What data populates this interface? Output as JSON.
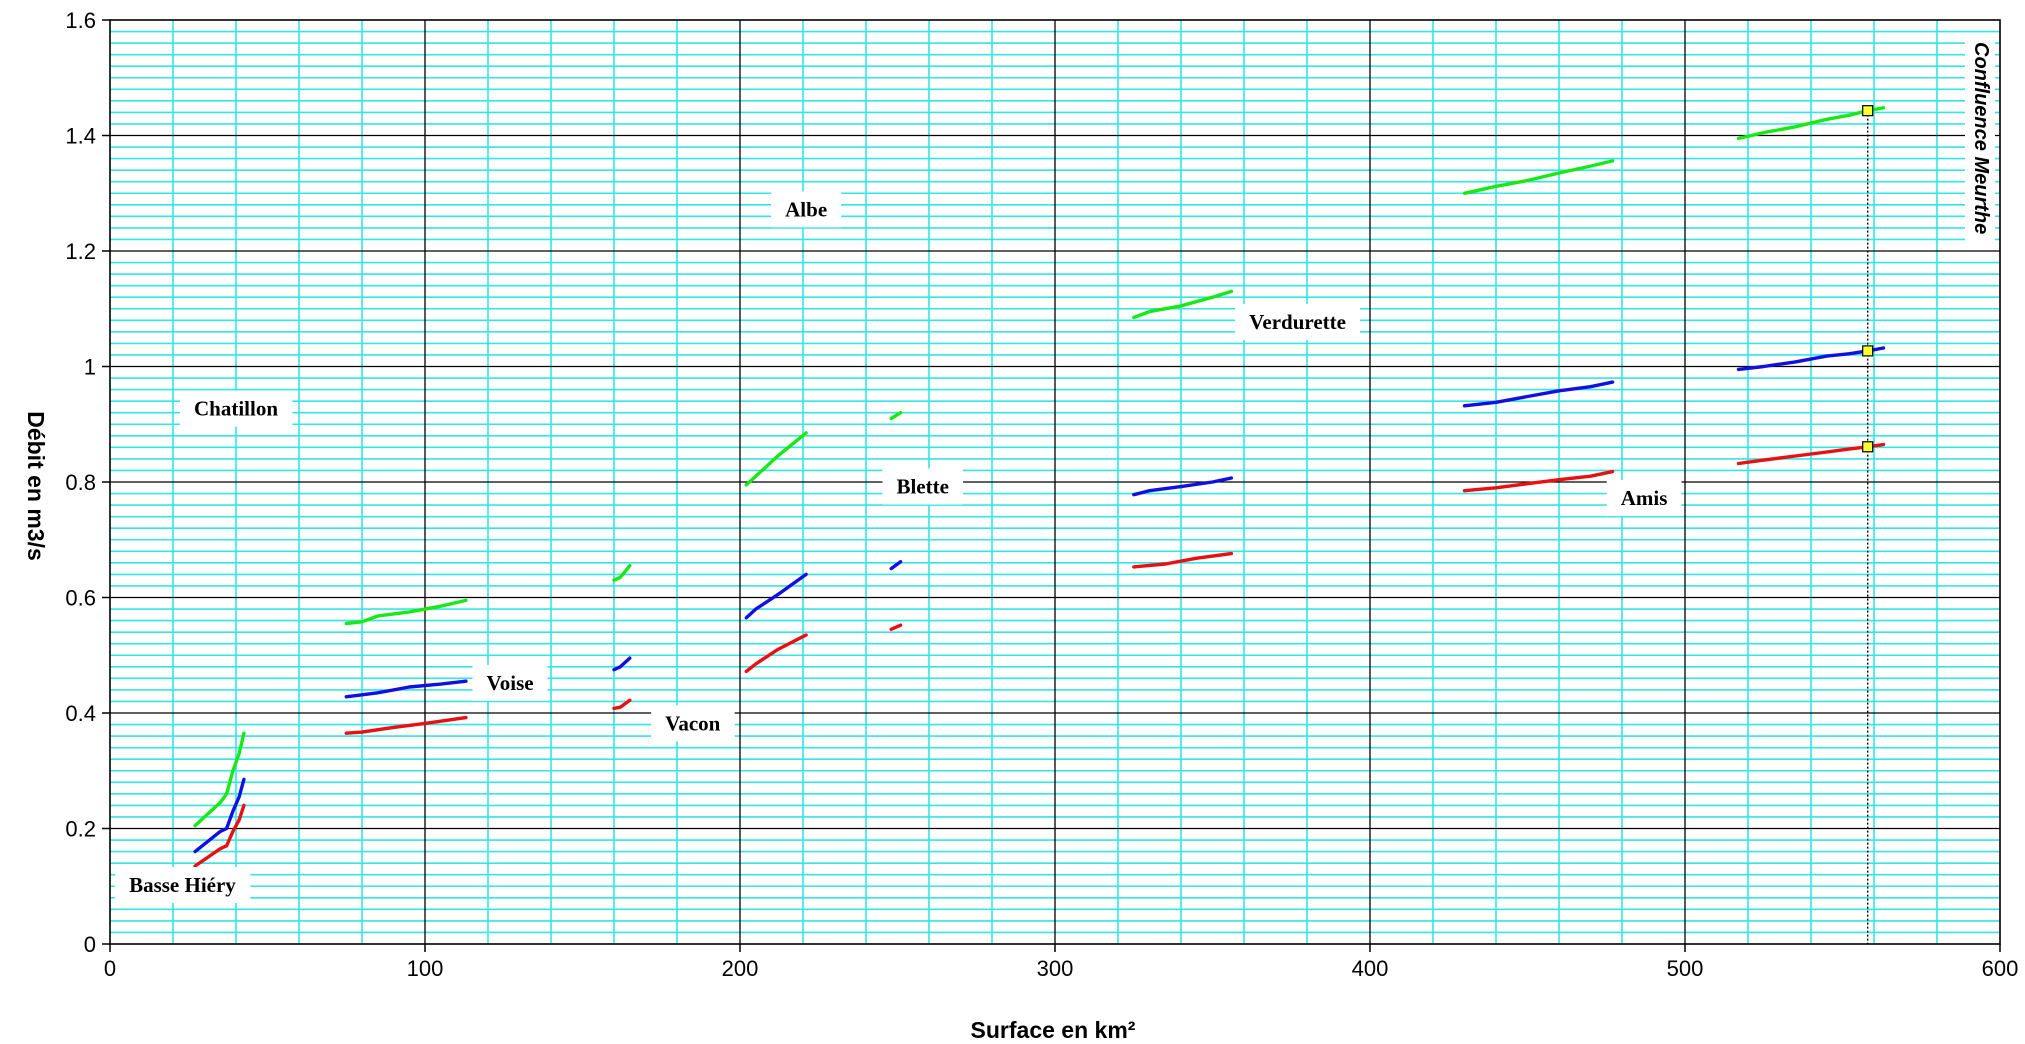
{
  "chart_data": {
    "type": "line",
    "title": "",
    "xlabel": "Surface en km²",
    "ylabel": "Débit en m3/s",
    "xlim": [
      0,
      600
    ],
    "ylim": [
      0,
      1.6
    ],
    "x_ticks": [
      "0",
      "100",
      "200",
      "300",
      "400",
      "500",
      "600"
    ],
    "y_ticks": [
      "0",
      "0.2",
      "0.4",
      "0.6",
      "0.8",
      "1",
      "1.2",
      "1.4",
      "1.6"
    ],
    "grid": {
      "major": true,
      "minor": true,
      "minor_color": "#33e5e5",
      "major_color": "#000000"
    },
    "series_colors": {
      "green": "#18e818",
      "blue": "#1010e0",
      "red": "#e81010"
    },
    "segments": [
      {
        "label": "Basse Hiéry",
        "label_pos": [
          23,
          0.09
        ],
        "green": [
          [
            27,
            0.205
          ],
          [
            35,
            0.245
          ],
          [
            37,
            0.26
          ],
          [
            39,
            0.3
          ],
          [
            41,
            0.33
          ],
          [
            42.5,
            0.365
          ]
        ],
        "blue": [
          [
            27,
            0.16
          ],
          [
            35,
            0.195
          ],
          [
            37,
            0.2
          ],
          [
            39,
            0.23
          ],
          [
            41,
            0.255
          ],
          [
            42.5,
            0.285
          ]
        ],
        "red": [
          [
            27,
            0.135
          ],
          [
            35,
            0.165
          ],
          [
            37,
            0.17
          ],
          [
            39,
            0.195
          ],
          [
            41,
            0.215
          ],
          [
            42.5,
            0.24
          ]
        ]
      },
      {
        "label": "Chatillon",
        "label_pos": [
          40,
          0.915
        ],
        "green": [
          [
            75,
            0.555
          ],
          [
            80,
            0.558
          ],
          [
            85,
            0.568
          ],
          [
            95,
            0.575
          ],
          [
            105,
            0.585
          ],
          [
            113,
            0.595
          ]
        ],
        "blue": [
          [
            75,
            0.428
          ],
          [
            85,
            0.435
          ],
          [
            95,
            0.445
          ],
          [
            105,
            0.45
          ],
          [
            113,
            0.455
          ]
        ],
        "red": [
          [
            75,
            0.365
          ],
          [
            80,
            0.367
          ],
          [
            90,
            0.375
          ],
          [
            100,
            0.382
          ],
          [
            113,
            0.392
          ]
        ]
      },
      {
        "label": "Voise",
        "label_pos": [
          127,
          0.44
        ],
        "green": [
          [
            160,
            0.63
          ],
          [
            162,
            0.635
          ],
          [
            165,
            0.655
          ]
        ],
        "blue": [
          [
            160,
            0.475
          ],
          [
            162,
            0.48
          ],
          [
            165,
            0.495
          ]
        ],
        "red": [
          [
            160,
            0.408
          ],
          [
            162,
            0.41
          ],
          [
            165,
            0.422
          ]
        ]
      },
      {
        "label": "Vacon",
        "label_pos": [
          185,
          0.37
        ],
        "green": [
          [
            202,
            0.795
          ],
          [
            205,
            0.81
          ],
          [
            212,
            0.845
          ],
          [
            221,
            0.885
          ]
        ],
        "blue": [
          [
            202,
            0.565
          ],
          [
            205,
            0.58
          ],
          [
            212,
            0.605
          ],
          [
            221,
            0.64
          ]
        ],
        "red": [
          [
            202,
            0.472
          ],
          [
            205,
            0.485
          ],
          [
            212,
            0.51
          ],
          [
            221,
            0.535
          ]
        ]
      },
      {
        "label": "Albe",
        "label_pos": [
          221,
          1.26
        ],
        "green": [
          [
            248,
            0.91
          ],
          [
            251,
            0.92
          ]
        ],
        "blue": [
          [
            248,
            0.65
          ],
          [
            251,
            0.662
          ]
        ],
        "red": [
          [
            248,
            0.545
          ],
          [
            251,
            0.552
          ]
        ]
      },
      {
        "label": "Blette",
        "label_pos": [
          258,
          0.78
        ],
        "green": [
          [
            325,
            1.085
          ],
          [
            330,
            1.095
          ],
          [
            340,
            1.105
          ],
          [
            350,
            1.12
          ],
          [
            356,
            1.13
          ]
        ],
        "blue": [
          [
            325,
            0.778
          ],
          [
            330,
            0.785
          ],
          [
            340,
            0.792
          ],
          [
            350,
            0.8
          ],
          [
            356,
            0.807
          ]
        ],
        "red": [
          [
            325,
            0.653
          ],
          [
            335,
            0.658
          ],
          [
            345,
            0.668
          ],
          [
            356,
            0.676
          ]
        ]
      },
      {
        "label": "Verdurette",
        "label_pos": [
          377,
          1.065
        ],
        "green": [
          [
            430,
            1.3
          ],
          [
            440,
            1.312
          ],
          [
            450,
            1.322
          ],
          [
            460,
            1.335
          ],
          [
            470,
            1.347
          ],
          [
            477,
            1.356
          ]
        ],
        "blue": [
          [
            430,
            0.932
          ],
          [
            440,
            0.938
          ],
          [
            450,
            0.948
          ],
          [
            460,
            0.958
          ],
          [
            470,
            0.965
          ],
          [
            477,
            0.973
          ]
        ],
        "red": [
          [
            430,
            0.785
          ],
          [
            440,
            0.79
          ],
          [
            450,
            0.797
          ],
          [
            460,
            0.804
          ],
          [
            470,
            0.81
          ],
          [
            477,
            0.818
          ]
        ]
      },
      {
        "label": "Amis",
        "label_pos": [
          487,
          0.76
        ],
        "green": [
          [
            517,
            1.395
          ],
          [
            525,
            1.405
          ],
          [
            535,
            1.415
          ],
          [
            545,
            1.428
          ],
          [
            552,
            1.435
          ],
          [
            558,
            1.443
          ],
          [
            563,
            1.448
          ]
        ],
        "blue": [
          [
            517,
            0.995
          ],
          [
            525,
            1.0
          ],
          [
            535,
            1.008
          ],
          [
            545,
            1.018
          ],
          [
            552,
            1.022
          ],
          [
            558,
            1.027
          ],
          [
            563,
            1.032
          ]
        ],
        "red": [
          [
            517,
            0.832
          ],
          [
            525,
            0.838
          ],
          [
            535,
            0.845
          ],
          [
            545,
            0.852
          ],
          [
            552,
            0.857
          ],
          [
            558,
            0.861
          ],
          [
            563,
            0.865
          ]
        ]
      }
    ],
    "confluence": {
      "label": "Confluence Meurthe",
      "x": 558,
      "markers": [
        1.443,
        1.027,
        0.861
      ],
      "marker_color": "#ffff33"
    }
  }
}
